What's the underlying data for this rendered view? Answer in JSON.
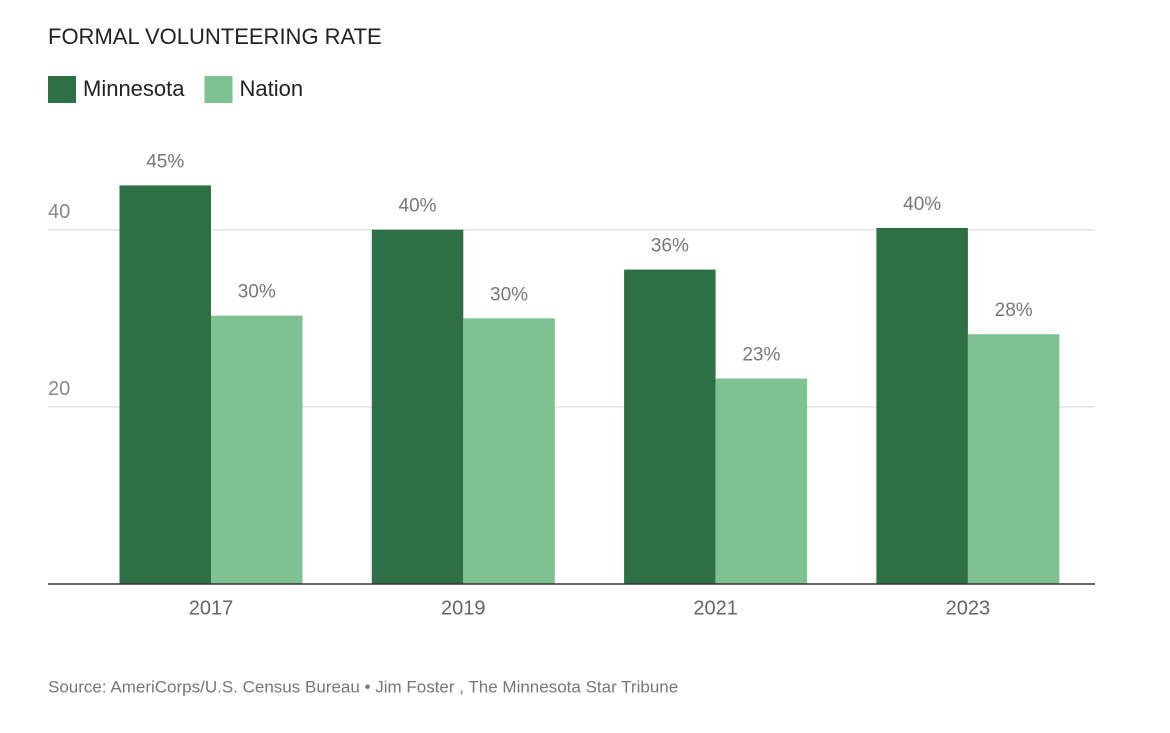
{
  "chart_data": {
    "type": "bar",
    "title": "FORMAL VOLUNTEERING RATE",
    "categories": [
      "2017",
      "2019",
      "2021",
      "2023"
    ],
    "series": [
      {
        "name": "Minnesota",
        "color": "#2f6f46",
        "values": [
          45,
          40,
          35.5,
          40.2
        ],
        "value_labels": [
          "45%",
          "40%",
          "36%",
          "40%"
        ]
      },
      {
        "name": "Nation",
        "color": "#7fc190",
        "values": [
          30.3,
          30,
          23.2,
          28.2
        ],
        "value_labels": [
          "30%",
          "30%",
          "23%",
          "28%"
        ]
      }
    ],
    "ylim": [
      0,
      49
    ],
    "yticks": [
      20,
      40
    ],
    "grid": true,
    "source": "Source: AmeriCorps/U.S. Census Bureau • Jim Foster , The Minnesota Star Tribune"
  }
}
